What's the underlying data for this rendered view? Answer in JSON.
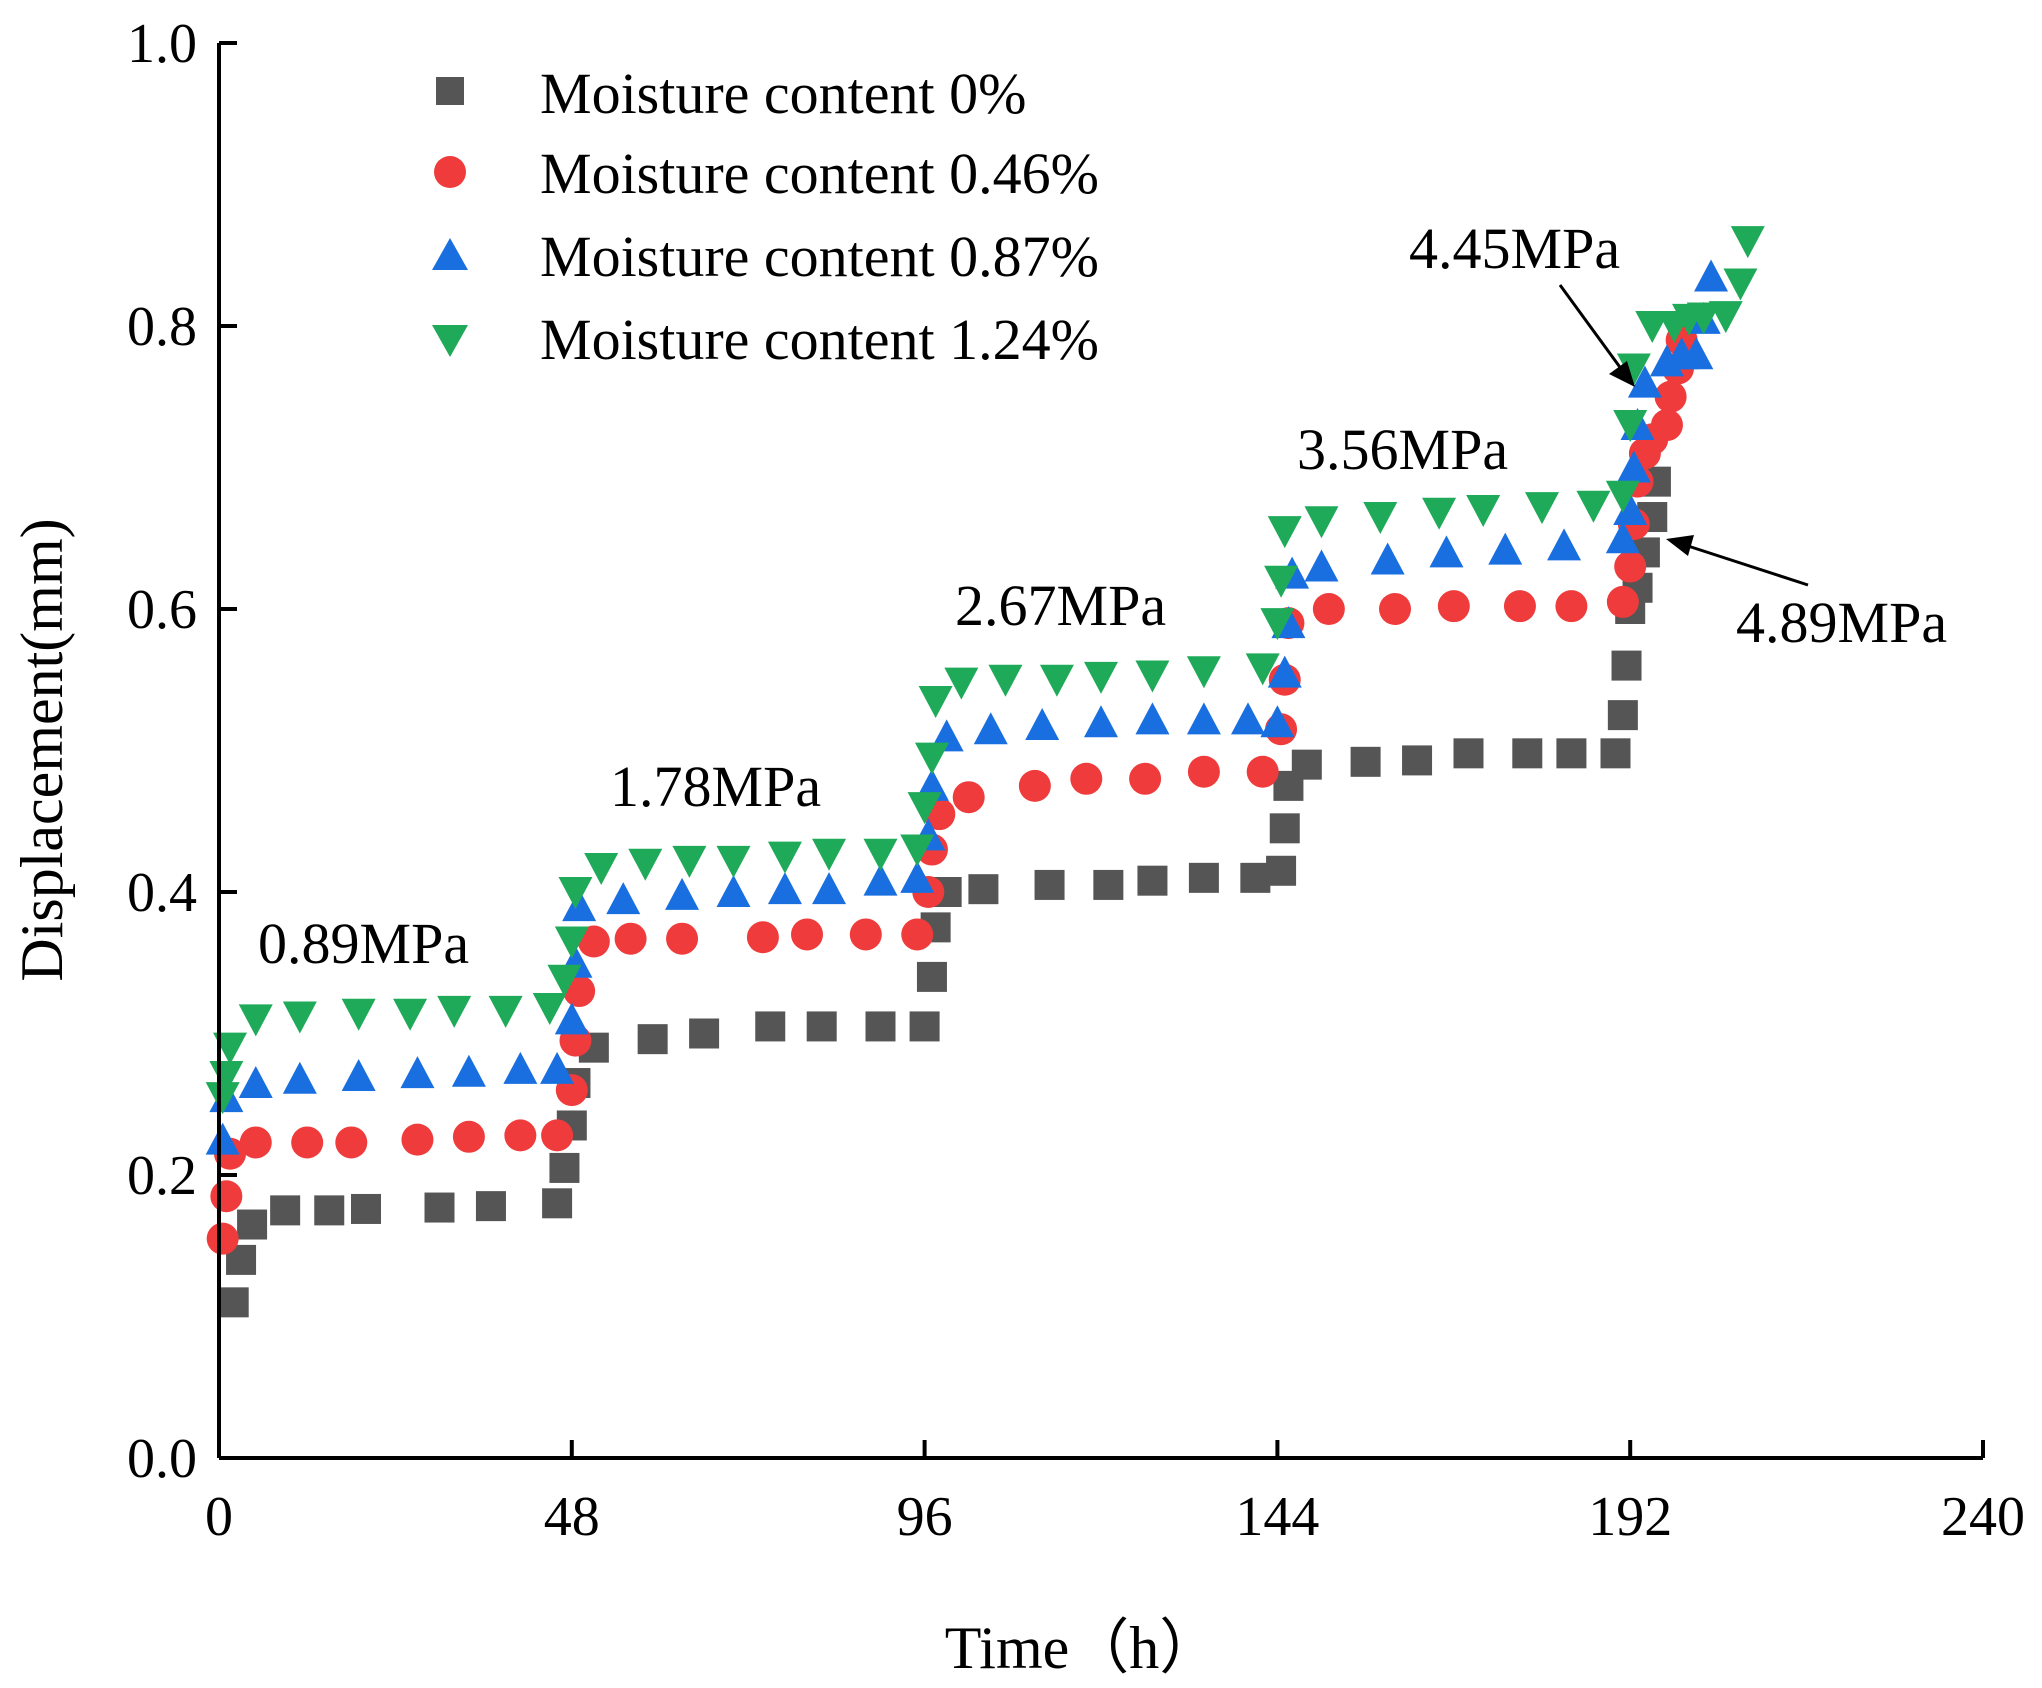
{
  "chart_data": {
    "type": "scatter",
    "title": "",
    "xlabel": "Time（h）",
    "ylabel": "Displacement(mm)",
    "xlim": [
      0,
      240
    ],
    "ylim": [
      0,
      1.0
    ],
    "xticks": [
      0,
      48,
      96,
      144,
      192,
      240
    ],
    "yticks": [
      0.0,
      0.2,
      0.4,
      0.6,
      0.8,
      1.0
    ],
    "xtick_labels": [
      "0",
      "48",
      "96",
      "144",
      "192",
      "240"
    ],
    "ytick_labels": [
      "0.0",
      "0.2",
      "0.4",
      "0.6",
      "0.8",
      "1.0"
    ],
    "grid": false,
    "legend_position": "top-left",
    "series": [
      {
        "name": "Moisture content 0%",
        "marker": "square",
        "color": "#555555",
        "points": [
          [
            2,
            0.11
          ],
          [
            3,
            0.14
          ],
          [
            4.5,
            0.165
          ],
          [
            9,
            0.175
          ],
          [
            15,
            0.175
          ],
          [
            20,
            0.176
          ],
          [
            30,
            0.177
          ],
          [
            37,
            0.178
          ],
          [
            46,
            0.18
          ],
          [
            47,
            0.205
          ],
          [
            48,
            0.235
          ],
          [
            48.5,
            0.265
          ],
          [
            51,
            0.29
          ],
          [
            59,
            0.296
          ],
          [
            66,
            0.3
          ],
          [
            75,
            0.305
          ],
          [
            82,
            0.305
          ],
          [
            90,
            0.305
          ],
          [
            96,
            0.305
          ],
          [
            97,
            0.34
          ],
          [
            97.5,
            0.375
          ],
          [
            99,
            0.4
          ],
          [
            104,
            0.402
          ],
          [
            113,
            0.405
          ],
          [
            121,
            0.405
          ],
          [
            127,
            0.408
          ],
          [
            134,
            0.41
          ],
          [
            141,
            0.41
          ],
          [
            144.5,
            0.415
          ],
          [
            145,
            0.445
          ],
          [
            145.5,
            0.475
          ],
          [
            148,
            0.49
          ],
          [
            156,
            0.492
          ],
          [
            163,
            0.493
          ],
          [
            170,
            0.498
          ],
          [
            178,
            0.498
          ],
          [
            184,
            0.498
          ],
          [
            190,
            0.498
          ],
          [
            191,
            0.525
          ],
          [
            191.5,
            0.56
          ],
          [
            192,
            0.6
          ],
          [
            193,
            0.615
          ],
          [
            194,
            0.64
          ],
          [
            195,
            0.665
          ],
          [
            195.5,
            0.69
          ]
        ]
      },
      {
        "name": "Moisture content 0.46%",
        "marker": "circle",
        "color": "#ef3b3b",
        "points": [
          [
            0.5,
            0.155
          ],
          [
            1,
            0.185
          ],
          [
            1.5,
            0.215
          ],
          [
            5,
            0.223
          ],
          [
            12,
            0.223
          ],
          [
            18,
            0.223
          ],
          [
            27,
            0.225
          ],
          [
            34,
            0.227
          ],
          [
            41,
            0.228
          ],
          [
            46,
            0.228
          ],
          [
            48,
            0.26
          ],
          [
            48.5,
            0.295
          ],
          [
            49,
            0.33
          ],
          [
            51,
            0.365
          ],
          [
            56,
            0.367
          ],
          [
            63,
            0.367
          ],
          [
            74,
            0.368
          ],
          [
            80,
            0.37
          ],
          [
            88,
            0.37
          ],
          [
            95,
            0.37
          ],
          [
            96.5,
            0.4
          ],
          [
            97,
            0.43
          ],
          [
            98,
            0.455
          ],
          [
            102,
            0.467
          ],
          [
            111,
            0.475
          ],
          [
            118,
            0.48
          ],
          [
            126,
            0.48
          ],
          [
            134,
            0.485
          ],
          [
            142,
            0.485
          ],
          [
            144.5,
            0.515
          ],
          [
            145,
            0.55
          ],
          [
            145.5,
            0.59
          ],
          [
            151,
            0.6
          ],
          [
            160,
            0.6
          ],
          [
            168,
            0.602
          ],
          [
            177,
            0.602
          ],
          [
            184,
            0.602
          ],
          [
            191,
            0.605
          ],
          [
            192,
            0.63
          ],
          [
            192.5,
            0.66
          ],
          [
            193,
            0.69
          ],
          [
            194,
            0.71
          ],
          [
            195,
            0.72
          ],
          [
            197,
            0.73
          ],
          [
            197.5,
            0.75
          ],
          [
            198.5,
            0.77
          ],
          [
            199,
            0.79
          ]
        ]
      },
      {
        "name": "Moisture content 0.87%",
        "marker": "triangle-up",
        "color": "#1a6fe0",
        "points": [
          [
            0.5,
            0.225
          ],
          [
            1,
            0.255
          ],
          [
            5,
            0.265
          ],
          [
            11,
            0.268
          ],
          [
            19,
            0.27
          ],
          [
            27,
            0.272
          ],
          [
            34,
            0.273
          ],
          [
            41,
            0.275
          ],
          [
            46,
            0.275
          ],
          [
            48,
            0.31
          ],
          [
            48.5,
            0.35
          ],
          [
            49,
            0.39
          ],
          [
            55,
            0.395
          ],
          [
            63,
            0.398
          ],
          [
            70,
            0.4
          ],
          [
            77,
            0.402
          ],
          [
            83,
            0.402
          ],
          [
            90,
            0.408
          ],
          [
            95,
            0.41
          ],
          [
            96.5,
            0.44
          ],
          [
            97,
            0.475
          ],
          [
            99,
            0.51
          ],
          [
            105,
            0.515
          ],
          [
            112,
            0.518
          ],
          [
            120,
            0.52
          ],
          [
            127,
            0.522
          ],
          [
            134,
            0.522
          ],
          [
            140,
            0.522
          ],
          [
            144,
            0.52
          ],
          [
            145,
            0.555
          ],
          [
            145.5,
            0.59
          ],
          [
            146,
            0.625
          ],
          [
            150,
            0.63
          ],
          [
            159,
            0.635
          ],
          [
            167,
            0.64
          ],
          [
            175,
            0.642
          ],
          [
            183,
            0.645
          ],
          [
            191,
            0.65
          ],
          [
            192,
            0.67
          ],
          [
            192.5,
            0.7
          ],
          [
            193,
            0.73
          ],
          [
            194,
            0.76
          ],
          [
            197,
            0.775
          ],
          [
            199,
            0.78
          ],
          [
            201,
            0.78
          ],
          [
            202,
            0.805
          ],
          [
            203,
            0.835
          ]
        ]
      },
      {
        "name": "Moisture content 1.24%",
        "marker": "triangle-down",
        "color": "#1faa5a",
        "points": [
          [
            0.5,
            0.255
          ],
          [
            1,
            0.27
          ],
          [
            1.5,
            0.29
          ],
          [
            5,
            0.31
          ],
          [
            11,
            0.312
          ],
          [
            19,
            0.314
          ],
          [
            26,
            0.314
          ],
          [
            32,
            0.316
          ],
          [
            39,
            0.316
          ],
          [
            45,
            0.318
          ],
          [
            47,
            0.338
          ],
          [
            48,
            0.365
          ],
          [
            48.5,
            0.4
          ],
          [
            52,
            0.417
          ],
          [
            58,
            0.42
          ],
          [
            64,
            0.422
          ],
          [
            70,
            0.422
          ],
          [
            77,
            0.425
          ],
          [
            83,
            0.427
          ],
          [
            90,
            0.427
          ],
          [
            95,
            0.43
          ],
          [
            96,
            0.46
          ],
          [
            97,
            0.495
          ],
          [
            97.5,
            0.535
          ],
          [
            101,
            0.548
          ],
          [
            107,
            0.55
          ],
          [
            114,
            0.55
          ],
          [
            120,
            0.552
          ],
          [
            127,
            0.553
          ],
          [
            134,
            0.556
          ],
          [
            142,
            0.558
          ],
          [
            144,
            0.59
          ],
          [
            144.5,
            0.62
          ],
          [
            145,
            0.655
          ],
          [
            150,
            0.662
          ],
          [
            158,
            0.665
          ],
          [
            166,
            0.668
          ],
          [
            172,
            0.67
          ],
          [
            180,
            0.672
          ],
          [
            187,
            0.673
          ],
          [
            191,
            0.68
          ],
          [
            192,
            0.73
          ],
          [
            192.5,
            0.77
          ],
          [
            195,
            0.8
          ],
          [
            198,
            0.8
          ],
          [
            200,
            0.805
          ],
          [
            202,
            0.806
          ],
          [
            205,
            0.807
          ],
          [
            207,
            0.83
          ],
          [
            208,
            0.86
          ]
        ]
      }
    ],
    "annotations": [
      {
        "text": "0.89MPa"
      },
      {
        "text": "1.78MPa"
      },
      {
        "text": "2.67MPa"
      },
      {
        "text": "3.56MPa"
      },
      {
        "text": "4.45MPa"
      },
      {
        "text": "4.89MPa"
      }
    ]
  }
}
